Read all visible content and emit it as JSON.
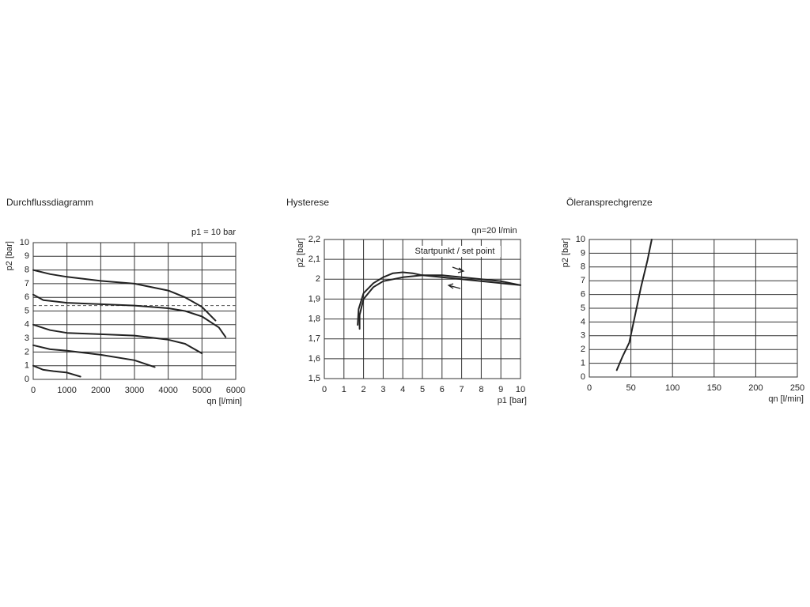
{
  "chart_data": [
    {
      "type": "line",
      "title": "Durchflussdiagramm",
      "annotation": "p1 = 10 bar",
      "x_label": "qn [l/min]",
      "y_label": "p2 [bar]",
      "xlim": [
        0,
        6000
      ],
      "xticks": [
        0,
        1000,
        2000,
        3000,
        4000,
        5000,
        6000
      ],
      "ylim": [
        0,
        10
      ],
      "yticks": [
        0,
        1,
        2,
        3,
        4,
        5,
        6,
        7,
        8,
        9,
        10
      ],
      "grid": true,
      "reference_lines": [
        {
          "y": 5.4,
          "style": "dashed"
        }
      ],
      "series": [
        {
          "color": "#222222",
          "x": [
            0,
            500,
            1000,
            2000,
            3000,
            4000,
            4500,
            5000,
            5400
          ],
          "values": [
            8,
            7.7,
            7.5,
            7.2,
            7.0,
            6.5,
            6.0,
            5.3,
            4.3
          ]
        },
        {
          "color": "#222222",
          "x": [
            0,
            300,
            1000,
            2000,
            3000,
            4000,
            4500,
            5000,
            5500,
            5700
          ],
          "values": [
            6.2,
            5.8,
            5.6,
            5.5,
            5.4,
            5.2,
            5.0,
            4.6,
            3.8,
            3.1
          ]
        },
        {
          "color": "#222222",
          "x": [
            0,
            500,
            1000,
            2000,
            3000,
            4000,
            4500,
            5000
          ],
          "values": [
            4,
            3.6,
            3.4,
            3.3,
            3.2,
            2.9,
            2.6,
            1.9
          ]
        },
        {
          "color": "#222222",
          "x": [
            0,
            500,
            1000,
            2000,
            3000,
            3600
          ],
          "values": [
            2.5,
            2.2,
            2.1,
            1.8,
            1.4,
            0.9
          ]
        },
        {
          "color": "#222222",
          "x": [
            0,
            300,
            600,
            1000,
            1400
          ],
          "values": [
            1,
            0.7,
            0.6,
            0.5,
            0.2
          ]
        }
      ]
    },
    {
      "type": "line",
      "title": "Hysterese",
      "annotation": "qn=20 l/min",
      "inner_annotation": "Startpunkt / set point",
      "x_label": "p1 [bar]",
      "y_label": "p2 [bar]",
      "xlim": [
        0,
        10
      ],
      "xticks": [
        0,
        1,
        2,
        3,
        4,
        5,
        6,
        7,
        8,
        9,
        10
      ],
      "ylim": [
        1.5,
        2.2
      ],
      "yticks": [
        {
          "value": 1.5,
          "label": "1,5"
        },
        {
          "value": 1.6,
          "label": "1,6"
        },
        {
          "value": 1.7,
          "label": "1,7"
        },
        {
          "value": 1.8,
          "label": "1,8"
        },
        {
          "value": 1.9,
          "label": "1,9"
        },
        2,
        {
          "value": 2.1,
          "label": "2,1"
        },
        {
          "value": 2.2,
          "label": "2,2"
        }
      ],
      "grid": true,
      "series": [
        {
          "color": "#222222",
          "x": [
            1.8,
            1.8,
            2,
            2.5,
            3,
            4,
            5,
            6,
            7,
            8,
            9,
            10
          ],
          "values": [
            1.75,
            1.82,
            1.9,
            1.96,
            1.99,
            2.01,
            2.02,
            2.02,
            2.01,
            2.0,
            1.99,
            1.97
          ]
        },
        {
          "color": "#222222",
          "x": [
            1.7,
            1.75,
            2,
            2.5,
            3,
            3.5,
            4,
            4.5,
            5,
            6,
            7,
            8,
            9,
            10
          ],
          "values": [
            1.77,
            1.85,
            1.93,
            1.98,
            2.01,
            2.03,
            2.035,
            2.03,
            2.02,
            2.01,
            2.0,
            1.99,
            1.98,
            1.97
          ]
        }
      ]
    },
    {
      "type": "line",
      "title": "Öleransprechgrenze",
      "x_label": "qn [l/min]",
      "y_label": "p2 [bar]",
      "xlim": [
        0,
        250
      ],
      "xticks": [
        0,
        50,
        100,
        150,
        200,
        250
      ],
      "ylim": [
        0,
        10
      ],
      "yticks": [
        0,
        1,
        2,
        3,
        4,
        5,
        6,
        7,
        8,
        9,
        10
      ],
      "grid": true,
      "series": [
        {
          "color": "#222222",
          "x": [
            33,
            40,
            48,
            55,
            62,
            70,
            75
          ],
          "values": [
            0.5,
            1.5,
            2.5,
            4.5,
            6.5,
            8.5,
            10
          ]
        }
      ]
    }
  ]
}
